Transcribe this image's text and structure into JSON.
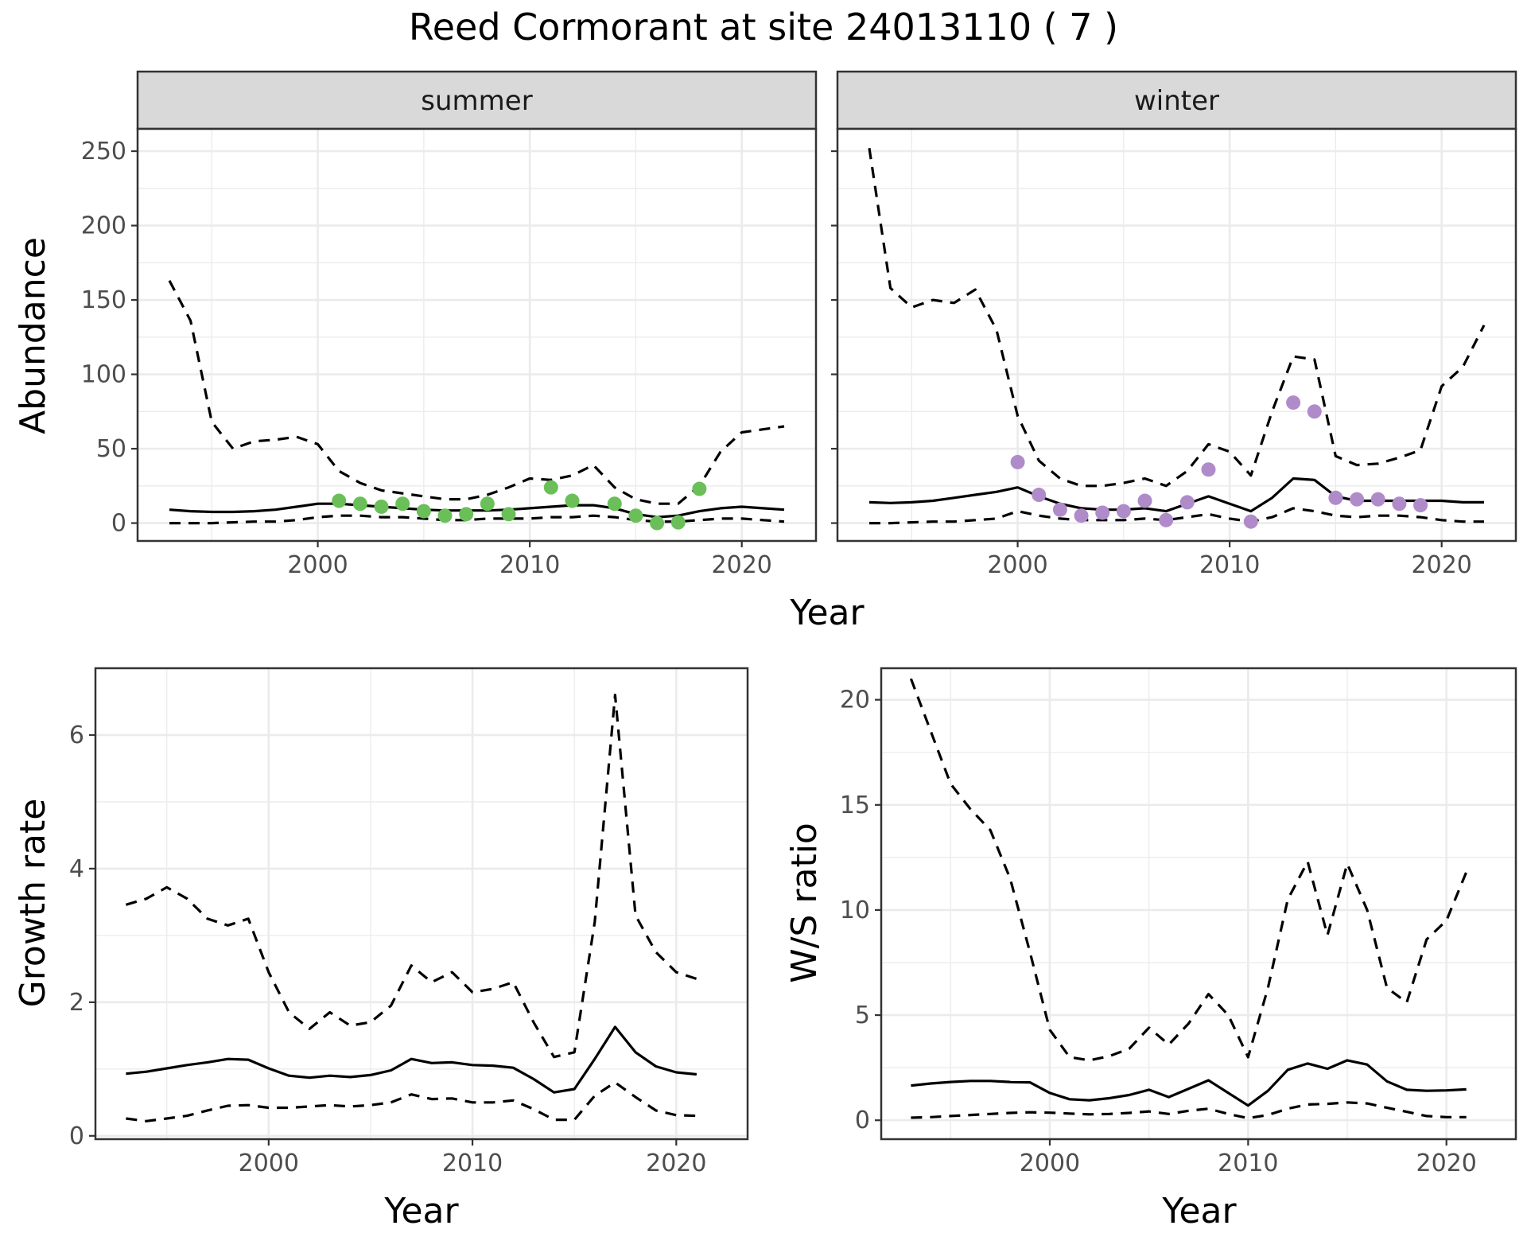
{
  "title": "Reed Cormorant at site 24013110 ( 7 )",
  "colors": {
    "summer_points": "#6abf59",
    "winter_points": "#b08bc9",
    "lines": "#000000"
  },
  "top_row": {
    "xlabel": "Year"
  },
  "chart_data": [
    {
      "type": "line",
      "panel": "summer",
      "strip_label": "summer",
      "xlabel": "",
      "ylabel": "Abundance",
      "xlim": [
        1991.5,
        2023.5
      ],
      "ylim": [
        -12,
        265
      ],
      "x_ticks": [
        2000,
        2010,
        2020
      ],
      "y_ticks": [
        0,
        50,
        100,
        150,
        200,
        250
      ],
      "grid": true,
      "series": [
        {
          "role": "mean",
          "style": "solid",
          "x": [
            1993,
            1994,
            1995,
            1996,
            1997,
            1998,
            1999,
            2000,
            2001,
            2002,
            2003,
            2004,
            2005,
            2006,
            2007,
            2008,
            2009,
            2010,
            2011,
            2012,
            2013,
            2014,
            2015,
            2016,
            2017,
            2018,
            2019,
            2020,
            2021,
            2022
          ],
          "y": [
            9,
            8,
            7.5,
            7.5,
            8,
            9,
            11,
            13,
            13,
            12,
            11,
            10,
            9,
            8.5,
            8.5,
            8.5,
            9,
            10,
            11,
            12,
            12,
            10,
            6,
            4,
            5,
            8,
            10,
            11,
            10,
            9
          ]
        },
        {
          "role": "upper",
          "style": "dashed",
          "x": [
            1993,
            1994,
            1995,
            1996,
            1997,
            1998,
            1999,
            2000,
            2001,
            2002,
            2003,
            2004,
            2005,
            2006,
            2007,
            2008,
            2009,
            2010,
            2011,
            2012,
            2013,
            2014,
            2015,
            2016,
            2017,
            2018,
            2019,
            2020,
            2021,
            2022
          ],
          "y": [
            163,
            136,
            68,
            50,
            55,
            56,
            58,
            53,
            35,
            27,
            22,
            20,
            18,
            16,
            16,
            19,
            24,
            30,
            29,
            32,
            39,
            24,
            16,
            13,
            13,
            25,
            48,
            61,
            63,
            65
          ]
        },
        {
          "role": "lower",
          "style": "dashed",
          "x": [
            1993,
            1994,
            1995,
            1996,
            1997,
            1998,
            1999,
            2000,
            2001,
            2002,
            2003,
            2004,
            2005,
            2006,
            2007,
            2008,
            2009,
            2010,
            2011,
            2012,
            2013,
            2014,
            2015,
            2016,
            2017,
            2018,
            2019,
            2020,
            2021,
            2022
          ],
          "y": [
            0,
            0,
            0,
            0.5,
            1,
            1,
            2,
            4,
            5,
            5,
            4,
            4,
            3,
            2,
            2,
            3,
            3,
            3,
            4,
            4,
            5,
            4,
            2,
            1,
            1,
            2,
            3,
            3,
            2,
            1
          ]
        }
      ],
      "points": {
        "x": [
          2001,
          2002,
          2003,
          2004,
          2005,
          2006,
          2007,
          2008,
          2009,
          2011,
          2012,
          2014,
          2015,
          2016,
          2017,
          2018
        ],
        "y": [
          15,
          13,
          11,
          13,
          8,
          5,
          6,
          13,
          6,
          24,
          15,
          13,
          5,
          0,
          0.5,
          23
        ]
      }
    },
    {
      "type": "line",
      "panel": "winter",
      "strip_label": "winter",
      "xlabel": "",
      "ylabel": "",
      "xlim": [
        1991.5,
        2023.5
      ],
      "ylim": [
        -12,
        265
      ],
      "x_ticks": [
        2000,
        2010,
        2020
      ],
      "y_ticks": [
        0,
        50,
        100,
        150,
        200,
        250
      ],
      "grid": true,
      "series": [
        {
          "role": "mean",
          "style": "solid",
          "x": [
            1993,
            1994,
            1995,
            1996,
            1997,
            1998,
            1999,
            2000,
            2001,
            2002,
            2003,
            2004,
            2005,
            2006,
            2007,
            2008,
            2009,
            2010,
            2011,
            2012,
            2013,
            2014,
            2015,
            2016,
            2017,
            2018,
            2019,
            2020,
            2021,
            2022
          ],
          "y": [
            14,
            13.5,
            14,
            15,
            17,
            19,
            21,
            24,
            18,
            13,
            10,
            9,
            9,
            10,
            8,
            13,
            18,
            13,
            8,
            17,
            30,
            29,
            18,
            15,
            15,
            15,
            15,
            15,
            14,
            14
          ]
        },
        {
          "role": "upper",
          "style": "dashed",
          "x": [
            1993,
            1994,
            1995,
            1996,
            1997,
            1998,
            1999,
            2000,
            2001,
            2002,
            2003,
            2004,
            2005,
            2006,
            2007,
            2008,
            2009,
            2010,
            2011,
            2012,
            2013,
            2014,
            2015,
            2016,
            2017,
            2018,
            2019,
            2020,
            2021,
            2022
          ],
          "y": [
            252,
            158,
            145,
            150,
            148,
            157,
            130,
            72,
            42,
            30,
            25,
            25,
            27,
            30,
            25,
            35,
            53,
            48,
            32,
            75,
            112,
            110,
            45,
            39,
            40,
            44,
            49,
            92,
            105,
            133
          ]
        },
        {
          "role": "lower",
          "style": "dashed",
          "x": [
            1993,
            1994,
            1995,
            1996,
            1997,
            1998,
            1999,
            2000,
            2001,
            2002,
            2003,
            2004,
            2005,
            2006,
            2007,
            2008,
            2009,
            2010,
            2011,
            2012,
            2013,
            2014,
            2015,
            2016,
            2017,
            2018,
            2019,
            2020,
            2021,
            2022
          ],
          "y": [
            0,
            0,
            0.5,
            1,
            1,
            2,
            3,
            8,
            5,
            3,
            2,
            2,
            2,
            3,
            2,
            4,
            6,
            3,
            1,
            4,
            10,
            8,
            5,
            4,
            5,
            5,
            4,
            2,
            1,
            1
          ]
        }
      ],
      "points": {
        "x": [
          2000,
          2001,
          2002,
          2003,
          2004,
          2005,
          2006,
          2007,
          2008,
          2009,
          2011,
          2013,
          2014,
          2015,
          2016,
          2017,
          2018,
          2019
        ],
        "y": [
          41,
          19,
          9,
          5,
          7,
          8,
          15,
          2,
          14,
          36,
          1,
          81,
          75,
          17,
          16,
          16,
          13,
          12
        ]
      }
    },
    {
      "type": "line",
      "panel": "growth",
      "xlabel": "Year",
      "ylabel": "Growth rate",
      "xlim": [
        1991.5,
        2023.5
      ],
      "ylim": [
        -0.05,
        7.0
      ],
      "x_ticks": [
        2000,
        2010,
        2020
      ],
      "y_ticks": [
        0,
        2,
        4,
        6
      ],
      "grid": true,
      "series": [
        {
          "role": "mean",
          "style": "solid",
          "x": [
            1993,
            1994,
            1995,
            1996,
            1997,
            1998,
            1999,
            2000,
            2001,
            2002,
            2003,
            2004,
            2005,
            2006,
            2007,
            2008,
            2009,
            2010,
            2011,
            2012,
            2013,
            2014,
            2015,
            2016,
            2017,
            2018,
            2019,
            2020,
            2021
          ],
          "y": [
            0.93,
            0.96,
            1.01,
            1.06,
            1.1,
            1.15,
            1.14,
            1.01,
            0.9,
            0.87,
            0.9,
            0.88,
            0.91,
            0.98,
            1.15,
            1.09,
            1.1,
            1.06,
            1.05,
            1.02,
            0.85,
            0.65,
            0.7,
            1.15,
            1.63,
            1.25,
            1.04,
            0.95,
            0.92
          ]
        },
        {
          "role": "upper",
          "style": "dashed",
          "x": [
            1993,
            1994,
            1995,
            1996,
            1997,
            1998,
            1999,
            2000,
            2001,
            2002,
            2003,
            2004,
            2005,
            2006,
            2007,
            2008,
            2009,
            2010,
            2011,
            2012,
            2013,
            2014,
            2015,
            2016,
            2017,
            2018,
            2019,
            2020,
            2021
          ],
          "y": [
            3.46,
            3.55,
            3.72,
            3.55,
            3.25,
            3.15,
            3.25,
            2.45,
            1.85,
            1.6,
            1.85,
            1.65,
            1.7,
            1.95,
            2.55,
            2.3,
            2.45,
            2.15,
            2.2,
            2.3,
            1.7,
            1.18,
            1.25,
            3.2,
            6.6,
            3.3,
            2.75,
            2.45,
            2.35
          ]
        },
        {
          "role": "lower",
          "style": "dashed",
          "x": [
            1993,
            1994,
            1995,
            1996,
            1997,
            1998,
            1999,
            2000,
            2001,
            2002,
            2003,
            2004,
            2005,
            2006,
            2007,
            2008,
            2009,
            2010,
            2011,
            2012,
            2013,
            2014,
            2015,
            2016,
            2017,
            2018,
            2019,
            2020,
            2021
          ],
          "y": [
            0.26,
            0.22,
            0.26,
            0.3,
            0.38,
            0.45,
            0.46,
            0.42,
            0.42,
            0.44,
            0.46,
            0.44,
            0.46,
            0.5,
            0.62,
            0.55,
            0.56,
            0.5,
            0.5,
            0.53,
            0.4,
            0.24,
            0.24,
            0.6,
            0.8,
            0.58,
            0.38,
            0.31,
            0.3
          ]
        }
      ]
    },
    {
      "type": "line",
      "panel": "ratio",
      "xlabel": "Year",
      "ylabel": "W/S ratio",
      "xlim": [
        1991.5,
        2023.5
      ],
      "ylim": [
        -0.9,
        21.5
      ],
      "x_ticks": [
        2000,
        2010,
        2020
      ],
      "y_ticks": [
        0,
        5,
        10,
        15,
        20
      ],
      "grid": true,
      "series": [
        {
          "role": "mean",
          "style": "solid",
          "x": [
            1993,
            1994,
            1995,
            1996,
            1997,
            1998,
            1999,
            2000,
            2001,
            2002,
            2003,
            2004,
            2005,
            2006,
            2007,
            2008,
            2009,
            2010,
            2011,
            2012,
            2013,
            2014,
            2015,
            2016,
            2017,
            2018,
            2019,
            2020,
            2021
          ],
          "y": [
            1.65,
            1.75,
            1.82,
            1.87,
            1.87,
            1.82,
            1.8,
            1.3,
            1.0,
            0.95,
            1.05,
            1.2,
            1.45,
            1.1,
            1.5,
            1.9,
            1.3,
            0.7,
            1.4,
            2.4,
            2.7,
            2.45,
            2.85,
            2.65,
            1.85,
            1.45,
            1.4,
            1.42,
            1.47
          ]
        },
        {
          "role": "upper",
          "style": "dashed",
          "x": [
            1993,
            1994,
            1995,
            1996,
            1997,
            1998,
            1999,
            2000,
            2001,
            2002,
            2003,
            2004,
            2005,
            2006,
            2007,
            2008,
            2009,
            2010,
            2011,
            2012,
            2013,
            2014,
            2015,
            2016,
            2017,
            2018,
            2019,
            2020,
            2021
          ],
          "y": [
            21.0,
            18.5,
            16.0,
            14.8,
            13.8,
            11.5,
            8.0,
            4.3,
            3.0,
            2.85,
            3.05,
            3.4,
            4.4,
            3.6,
            4.6,
            6.0,
            5.0,
            3.0,
            6.3,
            10.5,
            12.3,
            8.8,
            12.2,
            10.0,
            6.3,
            5.6,
            8.6,
            9.5,
            11.8
          ]
        },
        {
          "role": "lower",
          "style": "dashed",
          "x": [
            1993,
            1994,
            1995,
            1996,
            1997,
            1998,
            1999,
            2000,
            2001,
            2002,
            2003,
            2004,
            2005,
            2006,
            2007,
            2008,
            2009,
            2010,
            2011,
            2012,
            2013,
            2014,
            2015,
            2016,
            2017,
            2018,
            2019,
            2020,
            2021
          ],
          "y": [
            0.12,
            0.15,
            0.2,
            0.25,
            0.3,
            0.35,
            0.38,
            0.36,
            0.32,
            0.28,
            0.3,
            0.35,
            0.42,
            0.3,
            0.45,
            0.55,
            0.3,
            0.1,
            0.25,
            0.55,
            0.75,
            0.78,
            0.85,
            0.8,
            0.6,
            0.4,
            0.2,
            0.15,
            0.15
          ]
        }
      ]
    }
  ]
}
